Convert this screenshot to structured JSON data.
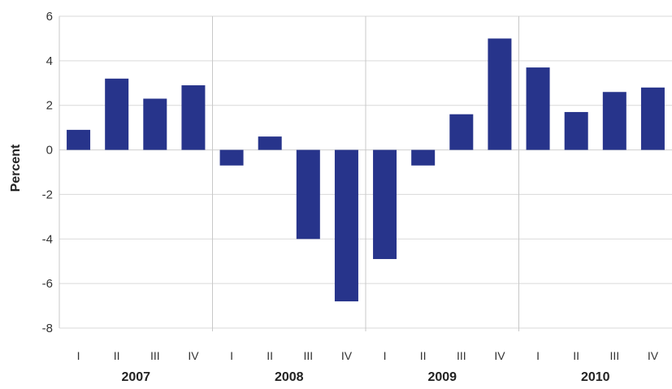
{
  "chart_data": {
    "type": "bar",
    "title": "",
    "xlabel": "",
    "ylabel": "Percent",
    "ylim": [
      -8,
      6
    ],
    "yticks": [
      6,
      4,
      2,
      0,
      -2,
      -4,
      -6,
      -8
    ],
    "ytick_labels": [
      "6",
      "4",
      "2",
      "0",
      "-2",
      "-4",
      "-6",
      "-8"
    ],
    "grid": true,
    "legend": "none",
    "colors": {
      "bar": "#27348b",
      "grid": "#d9d9d9",
      "separator": "#c8c8c8",
      "baseline": "#cfcfcf"
    },
    "groups": [
      {
        "year": "2007",
        "quarters": [
          "I",
          "II",
          "III",
          "IV"
        ]
      },
      {
        "year": "2008",
        "quarters": [
          "I",
          "II",
          "III",
          "IV"
        ]
      },
      {
        "year": "2009",
        "quarters": [
          "I",
          "II",
          "III",
          "IV"
        ]
      },
      {
        "year": "2010",
        "quarters": [
          "I",
          "II",
          "III",
          "IV"
        ]
      }
    ],
    "categories": [
      "2007 I",
      "2007 II",
      "2007 III",
      "2007 IV",
      "2008 I",
      "2008 II",
      "2008 III",
      "2008 IV",
      "2009 I",
      "2009 II",
      "2009 III",
      "2009 IV",
      "2010 I",
      "2010 II",
      "2010 III",
      "2010 IV"
    ],
    "values": [
      0.9,
      3.2,
      2.3,
      2.9,
      -0.7,
      0.6,
      -4.0,
      -6.8,
      -4.9,
      -0.7,
      1.6,
      5.0,
      3.7,
      1.7,
      2.6,
      2.8
    ]
  }
}
